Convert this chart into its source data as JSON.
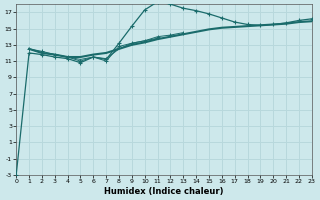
{
  "xlabel": "Humidex (Indice chaleur)",
  "xlim": [
    0,
    23
  ],
  "ylim": [
    -3,
    18
  ],
  "xticks": [
    0,
    1,
    2,
    3,
    4,
    5,
    6,
    7,
    8,
    9,
    10,
    11,
    12,
    13,
    14,
    15,
    16,
    17,
    18,
    19,
    20,
    21,
    22,
    23
  ],
  "yticks": [
    -3,
    -1,
    1,
    3,
    5,
    7,
    9,
    11,
    13,
    15,
    17
  ],
  "bg_color": "#cde8eb",
  "line_color": "#1a6b6b",
  "grid_color": "#b8d8dc",
  "line1_x": [
    0,
    1,
    2,
    3,
    4,
    5,
    6,
    7,
    8,
    9,
    10,
    11,
    12,
    13,
    14,
    15,
    16,
    17,
    18,
    19,
    20,
    21,
    22,
    23
  ],
  "line1_y": [
    -3.0,
    12.0,
    11.8,
    11.5,
    11.3,
    10.8,
    11.5,
    11.2,
    13.2,
    15.3,
    17.3,
    18.3,
    18.0,
    17.5,
    17.2,
    16.8,
    16.3,
    15.8,
    15.5,
    15.4,
    15.5,
    15.7,
    16.0,
    16.2
  ],
  "line2_x": [
    1,
    2,
    3,
    4,
    5,
    6,
    7,
    8,
    9,
    10,
    11,
    12,
    13,
    14,
    15,
    16,
    17,
    18,
    19,
    20,
    21,
    22,
    23
  ],
  "line2_y": [
    12.5,
    12.0,
    11.8,
    11.5,
    11.5,
    11.8,
    12.0,
    12.5,
    13.0,
    13.3,
    13.7,
    14.0,
    14.3,
    14.6,
    14.9,
    15.1,
    15.2,
    15.3,
    15.4,
    15.5,
    15.6,
    15.8,
    15.9
  ],
  "line3_x": [
    1,
    2,
    3,
    4,
    5,
    6,
    7,
    8,
    9,
    10,
    11,
    12,
    13
  ],
  "line3_y": [
    12.5,
    12.2,
    11.8,
    11.5,
    11.0,
    11.5,
    11.0,
    12.8,
    13.2,
    13.5,
    14.0,
    14.2,
    14.5
  ],
  "line4_x": [
    1,
    2,
    3,
    4,
    5,
    6,
    7,
    8,
    9,
    10,
    11
  ],
  "line4_y": [
    12.5,
    12.0,
    11.8,
    11.5,
    11.2,
    11.5,
    11.3,
    12.5,
    13.2,
    13.5,
    13.8
  ]
}
